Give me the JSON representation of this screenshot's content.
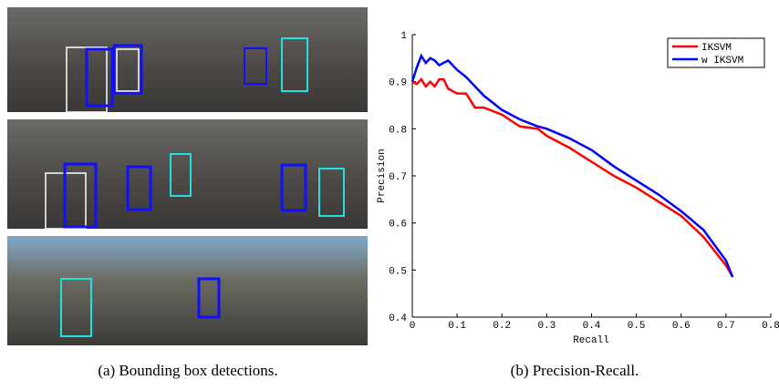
{
  "chart_data": {
    "type": "line",
    "xlabel": "Recall",
    "ylabel": "Precision",
    "x": [
      0,
      0.01,
      0.02,
      0.03,
      0.04,
      0.05,
      0.06,
      0.07,
      0.08,
      0.1,
      0.12,
      0.14,
      0.16,
      0.2,
      0.24,
      0.28,
      0.3,
      0.35,
      0.4,
      0.45,
      0.5,
      0.55,
      0.6,
      0.65,
      0.7,
      0.715
    ],
    "series": [
      {
        "name": "IKSVM",
        "color": "#ff0000",
        "values": [
          0.9,
          0.895,
          0.905,
          0.89,
          0.9,
          0.89,
          0.905,
          0.905,
          0.885,
          0.875,
          0.875,
          0.845,
          0.845,
          0.83,
          0.805,
          0.8,
          0.785,
          0.76,
          0.73,
          0.7,
          0.675,
          0.645,
          0.615,
          0.57,
          0.51,
          0.485
        ]
      },
      {
        "name": "w IKSVM",
        "color": "#0000ff",
        "values": [
          0.9,
          0.93,
          0.955,
          0.94,
          0.95,
          0.945,
          0.935,
          0.94,
          0.945,
          0.925,
          0.91,
          0.89,
          0.87,
          0.84,
          0.82,
          0.805,
          0.8,
          0.78,
          0.755,
          0.72,
          0.69,
          0.66,
          0.625,
          0.585,
          0.52,
          0.485
        ]
      }
    ],
    "xlim": [
      0,
      0.8
    ],
    "xticks": [
      0,
      0.1,
      0.2,
      0.3,
      0.4,
      0.5,
      0.6,
      0.7,
      0.8
    ],
    "ylim": [
      0.4,
      1
    ],
    "yticks": [
      0.4,
      0.5,
      0.6,
      0.7,
      0.8,
      0.9,
      1
    ],
    "legend": "upper right"
  },
  "captions": [
    "(a)  Bounding box detections.",
    "(b)  Precision-Recall."
  ]
}
